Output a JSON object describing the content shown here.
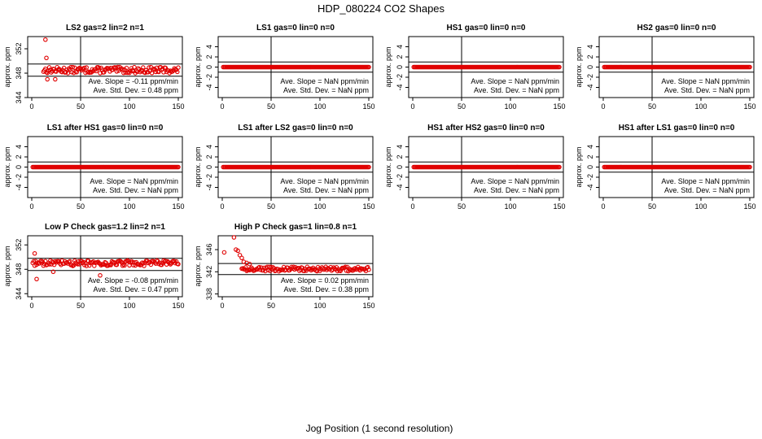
{
  "main_title": "HDP_080224  CO2 Shapes",
  "x_axis_label": "Jog Position (1 second resolution)",
  "y_axis_label": "approx. ppm",
  "colors": {
    "points": "#e00000",
    "axes": "#000000"
  },
  "chart_data": [
    {
      "type": "scatter",
      "title": "LS2 gas=2 lin=2 n=1",
      "xlim": [
        0,
        150
      ],
      "ylim": [
        344,
        354
      ],
      "yticks": [
        "344",
        "348",
        "352"
      ],
      "xticks": [
        "0",
        "50",
        "100",
        "150"
      ],
      "ref_lines": [
        349.5,
        347.5
      ],
      "slope_label": "Ave. Slope =",
      "slope_value": "-0.11",
      "slope_unit": "ppm/min",
      "sd_label": "Ave. Std. Dev. =",
      "sd_value": "0.48",
      "sd_unit": "ppm",
      "series": {
        "x_start": 12,
        "x_end": 150,
        "base": 348.5,
        "spread": 0.5,
        "outliers": [
          [
            14,
            353.5
          ],
          [
            15,
            350.5
          ],
          [
            16,
            347.0
          ],
          [
            24,
            347.0
          ]
        ]
      }
    },
    {
      "type": "scatter",
      "title": "LS1 gas=0 lin=0 n=0",
      "xlim": [
        0,
        150
      ],
      "ylim": [
        -6,
        6
      ],
      "yticks": [
        "-4",
        "-2",
        "0",
        "2",
        "4"
      ],
      "xticks": [
        "0",
        "50",
        "100",
        "150"
      ],
      "ref_lines": [
        1,
        -1
      ],
      "slope_label": "Ave. Slope =",
      "slope_value": "NaN",
      "slope_unit": "ppm/min",
      "sd_label": "Ave. Std. Dev. =",
      "sd_value": "NaN",
      "sd_unit": "ppm",
      "series": {
        "x_start": 1,
        "x_end": 150,
        "base": 0,
        "spread": 0,
        "outliers": []
      }
    },
    {
      "type": "scatter",
      "title": "HS1 gas=0 lin=0 n=0",
      "xlim": [
        0,
        150
      ],
      "ylim": [
        -6,
        6
      ],
      "yticks": [
        "-4",
        "-2",
        "0",
        "2",
        "4"
      ],
      "xticks": [
        "0",
        "50",
        "100",
        "150"
      ],
      "ref_lines": [
        1,
        -1
      ],
      "slope_label": "Ave. Slope =",
      "slope_value": "NaN",
      "slope_unit": "ppm/min",
      "sd_label": "Ave. Std. Dev. =",
      "sd_value": "NaN",
      "sd_unit": "ppm",
      "series": {
        "x_start": 1,
        "x_end": 150,
        "base": 0,
        "spread": 0,
        "outliers": []
      }
    },
    {
      "type": "scatter",
      "title": "HS2 gas=0 lin=0 n=0",
      "xlim": [
        0,
        150
      ],
      "ylim": [
        -6,
        6
      ],
      "yticks": [
        "-4",
        "-2",
        "0",
        "2",
        "4"
      ],
      "xticks": [
        "0",
        "50",
        "100",
        "150"
      ],
      "ref_lines": [
        1,
        -1
      ],
      "slope_label": "Ave. Slope =",
      "slope_value": "NaN",
      "slope_unit": "ppm/min",
      "sd_label": "Ave. Std. Dev. =",
      "sd_value": "NaN",
      "sd_unit": "ppm",
      "series": {
        "x_start": 1,
        "x_end": 150,
        "base": 0,
        "spread": 0,
        "outliers": []
      }
    },
    {
      "type": "scatter",
      "title": "LS1 after HS1 gas=0 lin=0 n=0",
      "xlim": [
        0,
        150
      ],
      "ylim": [
        -6,
        6
      ],
      "yticks": [
        "-4",
        "-2",
        "0",
        "2",
        "4"
      ],
      "xticks": [
        "0",
        "50",
        "100",
        "150"
      ],
      "ref_lines": [
        1,
        -1
      ],
      "slope_label": "Ave. Slope =",
      "slope_value": "NaN",
      "slope_unit": "ppm/min",
      "sd_label": "Ave. Std. Dev. =",
      "sd_value": "NaN",
      "sd_unit": "ppm",
      "series": {
        "x_start": 1,
        "x_end": 150,
        "base": 0,
        "spread": 0,
        "outliers": []
      }
    },
    {
      "type": "scatter",
      "title": "LS1 after LS2 gas=0 lin=0 n=0",
      "xlim": [
        0,
        150
      ],
      "ylim": [
        -6,
        6
      ],
      "yticks": [
        "-4",
        "-2",
        "0",
        "2",
        "4"
      ],
      "xticks": [
        "0",
        "50",
        "100",
        "150"
      ],
      "ref_lines": [
        1,
        -1
      ],
      "slope_label": "Ave. Slope =",
      "slope_value": "NaN",
      "slope_unit": "ppm/min",
      "sd_label": "Ave. Std. Dev. =",
      "sd_value": "NaN",
      "sd_unit": "ppm",
      "series": {
        "x_start": 1,
        "x_end": 150,
        "base": 0,
        "spread": 0,
        "outliers": []
      }
    },
    {
      "type": "scatter",
      "title": "HS1 after HS2 gas=0 lin=0 n=0",
      "xlim": [
        0,
        150
      ],
      "ylim": [
        -6,
        6
      ],
      "yticks": [
        "-4",
        "-2",
        "0",
        "2",
        "4"
      ],
      "xticks": [
        "0",
        "50",
        "100",
        "150"
      ],
      "ref_lines": [
        1,
        -1
      ],
      "slope_label": "Ave. Slope =",
      "slope_value": "NaN",
      "slope_unit": "ppm/min",
      "sd_label": "Ave. Std. Dev. =",
      "sd_value": "NaN",
      "sd_unit": "ppm",
      "series": {
        "x_start": 1,
        "x_end": 150,
        "base": 0,
        "spread": 0,
        "outliers": []
      }
    },
    {
      "type": "scatter",
      "title": "HS1 after LS1 gas=0 lin=0 n=0",
      "xlim": [
        0,
        150
      ],
      "ylim": [
        -6,
        6
      ],
      "yticks": [
        "-4",
        "-2",
        "0",
        "2",
        "4"
      ],
      "xticks": [
        "0",
        "50",
        "100",
        "150"
      ],
      "ref_lines": [
        1,
        -1
      ],
      "slope_label": "Ave. Slope =",
      "slope_value": "NaN",
      "slope_unit": "ppm/min",
      "sd_label": "Ave. Std. Dev. =",
      "sd_value": "NaN",
      "sd_unit": "ppm",
      "series": {
        "x_start": 1,
        "x_end": 150,
        "base": 0,
        "spread": 0,
        "outliers": []
      }
    },
    {
      "type": "scatter",
      "title": "Low P Check gas=1.2 lin=2 n=1",
      "xlim": [
        0,
        150
      ],
      "ylim": [
        343.5,
        353.5
      ],
      "yticks": [
        "344",
        "348",
        "352"
      ],
      "xticks": [
        "0",
        "50",
        "100",
        "150"
      ],
      "ref_lines": [
        349.8,
        347.8
      ],
      "slope_label": "Ave. Slope =",
      "slope_value": "-0.08",
      "slope_unit": "ppm/min",
      "sd_label": "Ave. Std. Dev. =",
      "sd_value": "0.47",
      "sd_unit": "ppm",
      "series": {
        "x_start": 1,
        "x_end": 150,
        "base": 349.0,
        "spread": 0.45,
        "outliers": [
          [
            3,
            350.6
          ],
          [
            5,
            346.4
          ],
          [
            22,
            347.6
          ],
          [
            70,
            347.0
          ]
        ]
      }
    },
    {
      "type": "scatter",
      "title": "High P Check gas=1 lin=0.8 n=1",
      "xlim": [
        0,
        150
      ],
      "ylim": [
        337.5,
        348.5
      ],
      "yticks": [
        "338",
        "342",
        "346"
      ],
      "xticks": [
        "0",
        "50",
        "100",
        "150"
      ],
      "ref_lines": [
        343.5,
        341.5
      ],
      "slope_label": "Ave. Slope =",
      "slope_value": "0.02",
      "slope_unit": "ppm/min",
      "sd_label": "Ave. Std. Dev. =",
      "sd_value": "0.38",
      "sd_unit": "ppm",
      "series": {
        "x_start": 20,
        "x_end": 150,
        "base": 342.5,
        "spread": 0.4,
        "outliers": [
          [
            2,
            345.5
          ],
          [
            12,
            348.2
          ],
          [
            14,
            346.0
          ],
          [
            16,
            345.8
          ],
          [
            18,
            345.0
          ],
          [
            20,
            344.5
          ],
          [
            22,
            343.8
          ],
          [
            25,
            343.6
          ],
          [
            28,
            343.4
          ]
        ]
      }
    }
  ]
}
